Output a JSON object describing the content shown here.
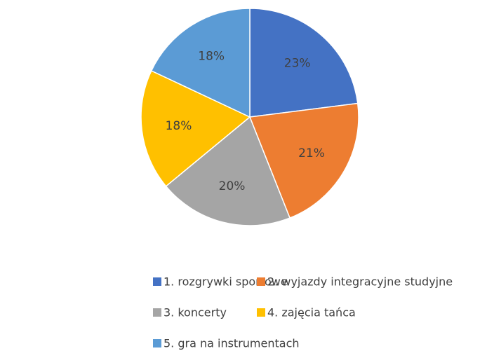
{
  "chart_data": {
    "type": "pie",
    "categories": [
      "1. rozgrywki sportowe",
      "2. wyjazdy integracyjne studyjne",
      "3. koncerty",
      "4. zajęcia tańca",
      "5. gra na instrumentach"
    ],
    "values": [
      23,
      21,
      20,
      18,
      18
    ],
    "value_labels": [
      "23%",
      "21%",
      "20%",
      "18%",
      "18%"
    ],
    "colors": [
      "#4472c4",
      "#ed7d31",
      "#a5a5a5",
      "#ffc000",
      "#5b9bd5"
    ],
    "legend": "bottom"
  }
}
